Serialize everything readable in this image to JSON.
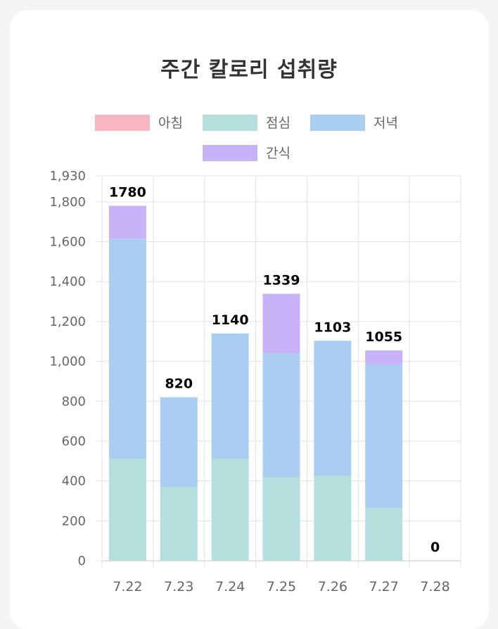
{
  "chart_data": {
    "type": "bar",
    "stacked": true,
    "title": "주간 칼로리 섭취량",
    "categories": [
      "7.22",
      "7.23",
      "7.24",
      "7.25",
      "7.26",
      "7.27",
      "7.28"
    ],
    "series": [
      {
        "name": "아침",
        "color": "#f7b6c2",
        "values": [
          0,
          0,
          0,
          0,
          0,
          0,
          0
        ]
      },
      {
        "name": "점심",
        "color": "#b5dfdd",
        "values": [
          510,
          370,
          510,
          420,
          425,
          265,
          0
        ]
      },
      {
        "name": "저녁",
        "color": "#aacdf2",
        "values": [
          1105,
          450,
          630,
          620,
          678,
          720,
          0
        ]
      },
      {
        "name": "간식",
        "color": "#c9b3f8",
        "values": [
          165,
          0,
          0,
          299,
          0,
          70,
          0
        ]
      }
    ],
    "totals": [
      1780,
      820,
      1140,
      1339,
      1103,
      1055,
      0
    ],
    "ylim": [
      0,
      1930
    ],
    "yticks": [
      "0",
      "200",
      "400",
      "600",
      "800",
      "1,000",
      "1,200",
      "1,400",
      "1,600",
      "1,800",
      "1,930"
    ],
    "ytick_values": [
      0,
      200,
      400,
      600,
      800,
      1000,
      1200,
      1400,
      1600,
      1800,
      1930
    ],
    "grid": true,
    "legend_position": "top"
  }
}
